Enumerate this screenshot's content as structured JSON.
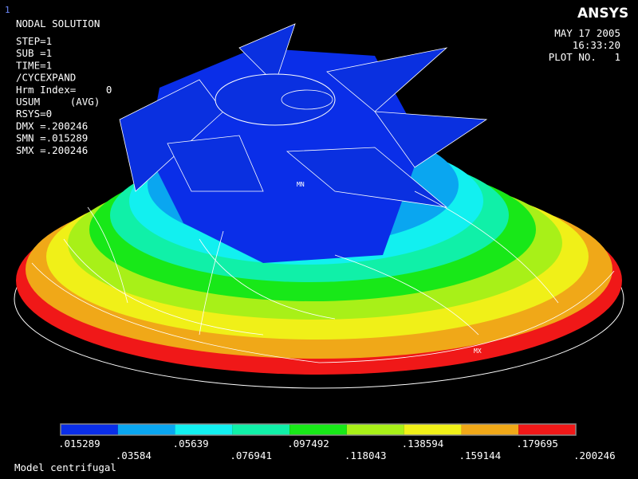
{
  "window_number": "1",
  "logo": "ANSYS",
  "title": "NODAL SOLUTION",
  "info_lines": [
    "STEP=1",
    "SUB =1",
    "TIME=1",
    "/CYCEXPAND",
    "Hrm Index=     0",
    "USUM     (AVG)",
    "RSYS=0",
    "DMX =.200246",
    "SMN =.015289",
    "SMX =.200246"
  ],
  "date": "MAY 17 2005",
  "time": "16:33:20",
  "plot_number": "PLOT NO.   1",
  "model_labels": {
    "min": "MN",
    "max": "MX"
  },
  "legend": {
    "colors": [
      "#0a2ee8",
      "#0aa6f0",
      "#12f0f0",
      "#10f0a8",
      "#18e818",
      "#a8f018",
      "#f0f018",
      "#f0a818",
      "#f01818"
    ],
    "labels": [
      ".015289",
      ".03584",
      ".05639",
      ".076941",
      ".097492",
      ".118043",
      ".138594",
      ".159144",
      ".179695",
      ".200246"
    ]
  },
  "footer": "Model centrifugal"
}
